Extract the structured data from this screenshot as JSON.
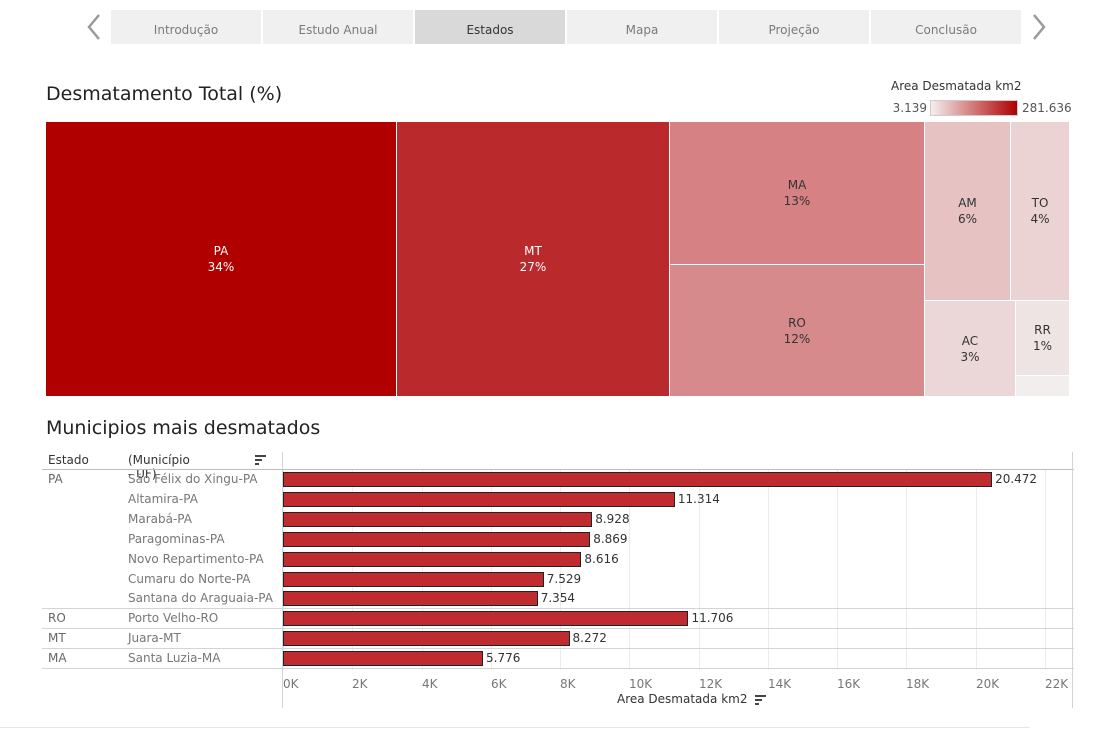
{
  "nav": {
    "tabs": [
      "Introdução",
      "Estudo Anual",
      "Estados",
      "Mapa",
      "Projeção",
      "Conclusão"
    ],
    "active_index": 2
  },
  "treemap": {
    "title": "Desmatamento Total (%)",
    "legend": {
      "title": "Area Desmatada km2",
      "min": "3.139",
      "max": "281.636",
      "min_color": "#f3efef",
      "max_color": "#b00000"
    },
    "cells": [
      {
        "id": "PA",
        "label": "PA",
        "pct": "34%",
        "color": "#b00000",
        "text": "#ffffff"
      },
      {
        "id": "MT",
        "label": "MT",
        "pct": "27%",
        "color": "#ba2a2c",
        "text": "#ffffff"
      },
      {
        "id": "MA",
        "label": "MA",
        "pct": "13%",
        "color": "#d68183",
        "text": "#333333"
      },
      {
        "id": "RO",
        "label": "RO",
        "pct": "12%",
        "color": "#d78a8c",
        "text": "#333333"
      },
      {
        "id": "AM",
        "label": "AM",
        "pct": "6%",
        "color": "#e6c2c3",
        "text": "#333333"
      },
      {
        "id": "TO",
        "label": "TO",
        "pct": "4%",
        "color": "#ebd2d3",
        "text": "#333333"
      },
      {
        "id": "AC",
        "label": "AC",
        "pct": "3%",
        "color": "#ebd7d8",
        "text": "#333333"
      },
      {
        "id": "RR",
        "label": "RR",
        "pct": "1%",
        "color": "#efe4e4",
        "text": "#333333"
      },
      {
        "id": "AP",
        "label": "",
        "pct": "",
        "color": "#f2eeee",
        "text": "#333333"
      }
    ]
  },
  "bars": {
    "title": "Municipios mais desmatados",
    "header_estado": "Estado",
    "header_municipio": "(Município - UF)",
    "bar_color": "#bf2b2f"
  },
  "chart_data": [
    {
      "type": "treemap",
      "title": "Desmatamento Total (%)",
      "color_legend": {
        "title": "Area Desmatada km2",
        "min": 3139,
        "max": 281636
      },
      "categories": [
        "PA",
        "MT",
        "MA",
        "RO",
        "AM",
        "TO",
        "AC",
        "RR"
      ],
      "values_pct": [
        34,
        27,
        13,
        12,
        6,
        4,
        3,
        1
      ]
    },
    {
      "type": "bar",
      "orientation": "horizontal",
      "title": "Municipios mais desmatados",
      "xlabel": "Area Desmatada km2",
      "xlim": [
        0,
        22000
      ],
      "xticks": [
        0,
        2000,
        4000,
        6000,
        8000,
        10000,
        12000,
        14000,
        16000,
        18000,
        20000,
        22000
      ],
      "xtick_labels": [
        "0K",
        "2K",
        "4K",
        "6K",
        "8K",
        "10K",
        "12K",
        "14K",
        "16K",
        "18K",
        "20K",
        "22K"
      ],
      "groups": [
        {
          "estado": "PA",
          "rows": [
            {
              "municipio": "São Félix do Xingu-PA",
              "value": 20472,
              "label": "20.472"
            },
            {
              "municipio": "Altamira-PA",
              "value": 11314,
              "label": "11.314"
            },
            {
              "municipio": "Marabá-PA",
              "value": 8928,
              "label": "8.928"
            },
            {
              "municipio": "Paragominas-PA",
              "value": 8869,
              "label": "8.869"
            },
            {
              "municipio": "Novo Repartimento-PA",
              "value": 8616,
              "label": "8.616"
            },
            {
              "municipio": "Cumaru do Norte-PA",
              "value": 7529,
              "label": "7.529"
            },
            {
              "municipio": "Santana do Araguaia-PA",
              "value": 7354,
              "label": "7.354"
            }
          ]
        },
        {
          "estado": "RO",
          "rows": [
            {
              "municipio": "Porto Velho-RO",
              "value": 11706,
              "label": "11.706"
            }
          ]
        },
        {
          "estado": "MT",
          "rows": [
            {
              "municipio": "Juara-MT",
              "value": 8272,
              "label": "8.272"
            }
          ]
        },
        {
          "estado": "MA",
          "rows": [
            {
              "municipio": "Santa Luzia-MA",
              "value": 5776,
              "label": "5.776"
            }
          ]
        }
      ]
    }
  ]
}
